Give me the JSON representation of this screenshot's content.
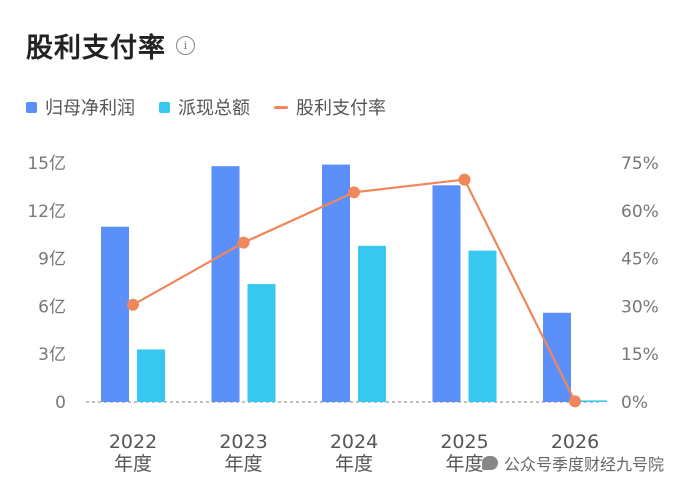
{
  "title": "股利支付率",
  "icons": {
    "info": "info-icon",
    "watermark": "wechat-icon"
  },
  "legend": [
    {
      "label": "归母净利润",
      "color": "#5B8FF9",
      "shape": "square"
    },
    {
      "label": "派现总额",
      "color": "#37C8F0",
      "shape": "square"
    },
    {
      "label": "股利支付率",
      "color": "#F0875A",
      "shape": "line"
    }
  ],
  "watermark": "公众号季度财经九号院",
  "chart_data": {
    "type": "bar",
    "categories": [
      "2022\n年度",
      "2023\n年度",
      "2024\n年度",
      "2025\n年度",
      "2026"
    ],
    "category_lines": [
      [
        "2022",
        "年度"
      ],
      [
        "2023",
        "年度"
      ],
      [
        "2024",
        "年度"
      ],
      [
        "2025",
        "年度"
      ],
      [
        "2026",
        ""
      ]
    ],
    "series": [
      {
        "name": "归母净利润",
        "type": "bar",
        "axis": "left",
        "color": "#5B8FF9",
        "values": [
          11.0,
          14.8,
          14.9,
          13.6,
          5.6
        ]
      },
      {
        "name": "派现总额",
        "type": "bar",
        "axis": "left",
        "color": "#37C8F0",
        "values": [
          3.3,
          7.4,
          9.8,
          9.5,
          0.1
        ]
      },
      {
        "name": "股利支付率",
        "type": "line",
        "axis": "right",
        "color": "#F0875A",
        "values": [
          30.5,
          50,
          65.8,
          69.8,
          0.2
        ]
      }
    ],
    "y_left": {
      "ticks": [
        "0",
        "3亿",
        "6亿",
        "9亿",
        "12亿",
        "15亿"
      ],
      "tick_values": [
        0,
        3,
        6,
        9,
        12,
        15
      ],
      "ylim": [
        0,
        15
      ]
    },
    "y_right": {
      "ticks": [
        "0%",
        "15%",
        "30%",
        "45%",
        "60%",
        "75%"
      ],
      "tick_values": [
        0,
        15,
        30,
        45,
        60,
        75
      ],
      "ylim": [
        0,
        75
      ]
    },
    "grid": "horizontal-dotted",
    "legend_position": "top-left"
  }
}
